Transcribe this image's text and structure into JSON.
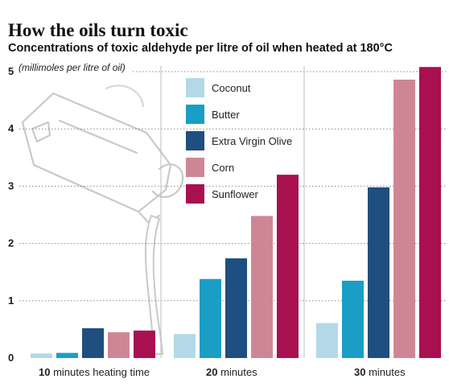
{
  "chart_data": {
    "type": "bar",
    "title": "How the oils turn toxic",
    "subtitle": "Concentrations of toxic aldehyde per litre of oil when heated at 180°C",
    "ylabel": "(millimoles per litre of oil)",
    "ylim": [
      0,
      5
    ],
    "yticks": [
      "0",
      "1",
      "2",
      "3",
      "4",
      "5"
    ],
    "grid": false,
    "legend_position": "top-center",
    "categories": [
      {
        "number": "10",
        "label": "minutes heating time"
      },
      {
        "number": "20",
        "label": "minutes"
      },
      {
        "number": "30",
        "label": "minutes"
      }
    ],
    "series": [
      {
        "name": "Coconut",
        "color": "#b3d9e8",
        "values": [
          0.08,
          0.42,
          0.61
        ]
      },
      {
        "name": "Butter",
        "color": "#1a9ec6",
        "values": [
          0.09,
          1.38,
          1.35
        ]
      },
      {
        "name": "Extra Virgin Olive",
        "color": "#1f4e80",
        "values": [
          0.52,
          1.74,
          2.98
        ]
      },
      {
        "name": "Corn",
        "color": "#cf8694",
        "values": [
          0.45,
          2.48,
          4.86
        ]
      },
      {
        "name": "Sunflower",
        "color": "#a8104f",
        "values": [
          0.48,
          3.2,
          5.08
        ]
      }
    ]
  }
}
